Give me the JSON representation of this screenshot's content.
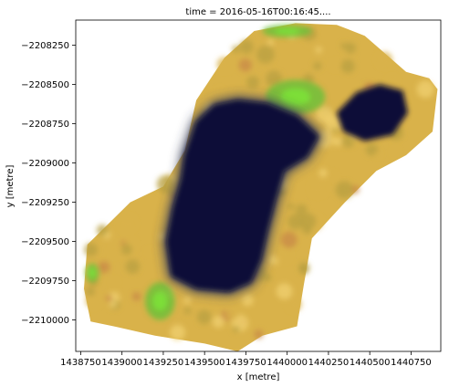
{
  "chart_data": {
    "type": "heatmap",
    "title": "time = 2016-05-16T00:16:45....",
    "xlabel": "x [metre]",
    "ylabel": "y [metre]",
    "xlim": [
      1438720,
      1440930
    ],
    "ylim": [
      -2210200,
      -2208090
    ],
    "xticks": [
      1438750,
      1439000,
      1439250,
      1439500,
      1439750,
      1440000,
      1440250,
      1440500,
      1440750
    ],
    "xtick_labels": [
      "1438750",
      "1439000",
      "1439250",
      "1439500",
      "1439750",
      "1440000",
      "1440250",
      "1440500",
      "1440750"
    ],
    "yticks": [
      -2208250,
      -2208500,
      -2208750,
      -2209000,
      -2209250,
      -2209500,
      -2209750,
      -2210000
    ],
    "ytick_labels": [
      "−2208250",
      "−2208500",
      "−2208750",
      "−2209000",
      "−2209250",
      "−2209500",
      "−2209750",
      "−2210000"
    ],
    "grid": false,
    "image": {
      "description_colors": {
        "water": "#0b1038",
        "water_shallow": "#3a3f58",
        "sand": "#d9b24a",
        "dry_vegetation": "#b8a040",
        "bright_sand": "#f0d070",
        "vegetation": "#6fc03a",
        "bright_vegetation": "#7de23a",
        "reddish_soil": "#c88a48"
      },
      "land_polygon": [
        [
          1438790,
          -2209520
        ],
        [
          1439050,
          -2209250
        ],
        [
          1439250,
          -2209150
        ],
        [
          1439380,
          -2208920
        ],
        [
          1439450,
          -2208600
        ],
        [
          1439620,
          -2208330
        ],
        [
          1439800,
          -2208160
        ],
        [
          1440050,
          -2208110
        ],
        [
          1440300,
          -2208120
        ],
        [
          1440470,
          -2208190
        ],
        [
          1440600,
          -2208310
        ],
        [
          1440720,
          -2208420
        ],
        [
          1440860,
          -2208460
        ],
        [
          1440910,
          -2208530
        ],
        [
          1440880,
          -2208800
        ],
        [
          1440720,
          -2208950
        ],
        [
          1440540,
          -2209050
        ],
        [
          1440350,
          -2209250
        ],
        [
          1440150,
          -2209480
        ],
        [
          1440100,
          -2209780
        ],
        [
          1440060,
          -2210040
        ],
        [
          1439850,
          -2210100
        ],
        [
          1439700,
          -2210200
        ],
        [
          1439500,
          -2210150
        ],
        [
          1439200,
          -2210100
        ],
        [
          1438950,
          -2210040
        ],
        [
          1438810,
          -2210010
        ],
        [
          1438770,
          -2209800
        ]
      ],
      "lake_main_polygon": [
        [
          1439380,
          -2208950
        ],
        [
          1439450,
          -2208740
        ],
        [
          1439560,
          -2208630
        ],
        [
          1439700,
          -2208600
        ],
        [
          1439880,
          -2208620
        ],
        [
          1440060,
          -2208700
        ],
        [
          1440190,
          -2208830
        ],
        [
          1440120,
          -2208960
        ],
        [
          1439980,
          -2209050
        ],
        [
          1439930,
          -2209230
        ],
        [
          1439880,
          -2209430
        ],
        [
          1439840,
          -2209620
        ],
        [
          1439780,
          -2209760
        ],
        [
          1439650,
          -2209820
        ],
        [
          1439450,
          -2209800
        ],
        [
          1439300,
          -2209720
        ],
        [
          1439270,
          -2209500
        ],
        [
          1439310,
          -2209280
        ],
        [
          1439360,
          -2209100
        ]
      ],
      "lake_east_polygon": [
        [
          1440300,
          -2208680
        ],
        [
          1440420,
          -2208550
        ],
        [
          1440560,
          -2208500
        ],
        [
          1440700,
          -2208540
        ],
        [
          1440730,
          -2208680
        ],
        [
          1440640,
          -2208820
        ],
        [
          1440470,
          -2208860
        ],
        [
          1440340,
          -2208800
        ]
      ],
      "vegetation_patches": [
        {
          "center": [
            1440050,
            -2208580
          ],
          "radius": [
            180,
            110
          ]
        },
        {
          "center": [
            1439230,
            -2209880
          ],
          "radius": [
            90,
            120
          ]
        },
        {
          "center": [
            1438820,
            -2209700
          ],
          "radius": [
            40,
            60
          ]
        },
        {
          "center": [
            1440000,
            -2208160
          ],
          "radius": [
            150,
            40
          ]
        }
      ]
    }
  }
}
